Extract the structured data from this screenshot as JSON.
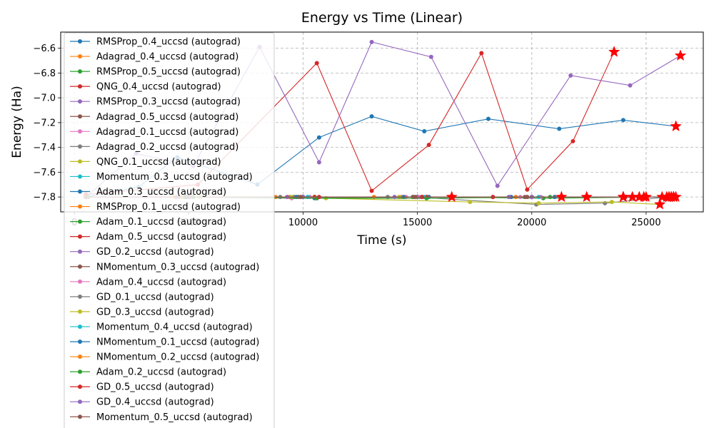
{
  "chart_data": {
    "type": "line",
    "title": "Energy vs Time (Linear)",
    "xlabel": "Time (s)",
    "ylabel": "Energy (Ha)",
    "xlim": [
      -600,
      27500
    ],
    "ylim": [
      -7.92,
      -6.47
    ],
    "x_ticks": [
      0,
      5000,
      10000,
      15000,
      20000,
      25000
    ],
    "x_tick_labels": [
      "0",
      "5000",
      "10000",
      "15000",
      "20000",
      "25000"
    ],
    "y_ticks": [
      -7.8,
      -7.6,
      -7.4,
      -7.2,
      -7.0,
      -6.8,
      -6.6
    ],
    "y_tick_labels": [
      "−7.8",
      "−7.6",
      "−7.4",
      "−7.2",
      "−7.0",
      "−6.8",
      "−6.6"
    ],
    "grid": true,
    "legend_position": "upper-left",
    "end_marker": "red-star",
    "series": [
      {
        "name": "RMSProp_0.4_uccsd (autograd)",
        "color": "#1f77b4",
        "x": [
          500,
          2800,
          4500,
          8000,
          10700,
          13000,
          15300,
          18100,
          21200,
          24000,
          26300
        ],
        "y": [
          -7.8,
          -7.72,
          -7.48,
          -7.7,
          -7.32,
          -7.15,
          -7.27,
          -7.17,
          -7.25,
          -7.18,
          -7.23
        ]
      },
      {
        "name": "Adagrad_0.4_uccsd (autograd)",
        "color": "#ff7f0e",
        "x": [
          500,
          5000,
          10000,
          15000,
          20000,
          26200
        ],
        "y": [
          -7.8,
          -7.8,
          -7.8,
          -7.8,
          -7.8,
          -7.8
        ]
      },
      {
        "name": "RMSProp_0.5_uccsd (autograd)",
        "color": "#2ca02c",
        "x": [
          600,
          5000,
          10500,
          15400,
          20500,
          26100
        ],
        "y": [
          -7.8,
          -7.8,
          -7.8,
          -7.8,
          -7.81,
          -7.8
        ]
      },
      {
        "name": "QNG_0.4_uccsd (autograd)",
        "color": "#d62728",
        "x": [
          500,
          5400,
          10600,
          13000,
          15500,
          17800,
          19800,
          21800,
          23600
        ],
        "y": [
          -7.78,
          -7.7,
          -6.72,
          -7.75,
          -7.38,
          -6.64,
          -7.74,
          -7.35,
          -6.63
        ]
      },
      {
        "name": "RMSProp_0.3_uccsd (autograd)",
        "color": "#9467bd",
        "x": [
          500,
          2700,
          5200,
          8100,
          10700,
          13000,
          15600,
          18500,
          21700,
          24300,
          26500
        ],
        "y": [
          -7.8,
          -7.45,
          -7.55,
          -6.59,
          -7.52,
          -6.55,
          -6.67,
          -7.71,
          -6.82,
          -6.9,
          -6.66
        ]
      },
      {
        "name": "Adagrad_0.5_uccsd (autograd)",
        "color": "#8c564b",
        "x": [
          500,
          5000,
          10000,
          15000,
          20000,
          26300
        ],
        "y": [
          -7.8,
          -7.8,
          -7.8,
          -7.8,
          -7.8,
          -7.8
        ]
      },
      {
        "name": "Adagrad_0.1_uccsd (autograd)",
        "color": "#e377c2",
        "x": [
          500,
          4500,
          9500,
          14500,
          19500,
          25000
        ],
        "y": [
          -7.8,
          -7.8,
          -7.81,
          -7.8,
          -7.8,
          -7.8
        ]
      },
      {
        "name": "Adagrad_0.2_uccsd (autograd)",
        "color": "#7f7f7f",
        "x": [
          500,
          4800,
          9600,
          14800,
          20200,
          23200,
          26000
        ],
        "y": [
          -7.8,
          -7.8,
          -7.8,
          -7.8,
          -7.86,
          -7.85,
          -7.8
        ]
      },
      {
        "name": "QNG_0.1_uccsd (autograd)",
        "color": "#bcbd22",
        "x": [
          500,
          5500,
          11000,
          17300,
          20300,
          23500,
          25600
        ],
        "y": [
          -7.8,
          -7.8,
          -7.81,
          -7.84,
          -7.85,
          -7.84,
          -7.86
        ]
      },
      {
        "name": "Momentum_0.3_uccsd (autograd)",
        "color": "#17becf",
        "x": [
          500,
          5000,
          10000,
          15000,
          20000,
          26100
        ],
        "y": [
          -7.8,
          -7.8,
          -7.8,
          -7.8,
          -7.8,
          -7.8
        ]
      },
      {
        "name": "Adam_0.3_uccsd (autograd)",
        "color": "#1f77b4",
        "x": [
          500,
          5000,
          10500,
          15500,
          21000,
          26200
        ],
        "y": [
          -7.8,
          -7.8,
          -7.81,
          -7.8,
          -7.8,
          -7.8
        ]
      },
      {
        "name": "RMSProp_0.1_uccsd (autograd)",
        "color": "#ff7f0e",
        "x": [
          500,
          4600,
          9400,
          14300,
          19300,
          24000
        ],
        "y": [
          -7.8,
          -7.8,
          -7.8,
          -7.8,
          -7.8,
          -7.8
        ]
      },
      {
        "name": "Adam_0.1_uccsd (autograd)",
        "color": "#2ca02c",
        "x": [
          500,
          5200,
          10600,
          15200,
          20800,
          26000
        ],
        "y": [
          -7.8,
          -7.8,
          -7.81,
          -7.8,
          -7.8,
          -7.8
        ]
      },
      {
        "name": "Adam_0.5_uccsd (autograd)",
        "color": "#d62728",
        "x": [
          500,
          5000,
          10500,
          15400,
          20000,
          24700
        ],
        "y": [
          -7.8,
          -7.8,
          -7.8,
          -7.8,
          -7.8,
          -7.8
        ]
      },
      {
        "name": "GD_0.2_uccsd (autograd)",
        "color": "#9467bd",
        "x": [
          500,
          5000,
          10000,
          15000,
          20000,
          24400
        ],
        "y": [
          -7.8,
          -7.8,
          -7.8,
          -7.8,
          -7.8,
          -7.8
        ]
      },
      {
        "name": "NMomentum_0.3_uccsd (autograd)",
        "color": "#8c564b",
        "x": [
          500,
          4800,
          9800,
          14800,
          19800,
          24900
        ],
        "y": [
          -7.8,
          -7.8,
          -7.8,
          -7.8,
          -7.8,
          -7.8
        ]
      },
      {
        "name": "Adam_0.4_uccsd (autograd)",
        "color": "#e377c2",
        "x": [
          500,
          5100,
          10300,
          15100,
          20400,
          25900
        ],
        "y": [
          -7.8,
          -7.8,
          -7.8,
          -7.8,
          -7.8,
          -7.8
        ]
      },
      {
        "name": "GD_0.1_uccsd (autograd)",
        "color": "#7f7f7f",
        "x": [
          500,
          4400,
          9000,
          13700,
          18300,
          22400
        ],
        "y": [
          -7.8,
          -7.8,
          -7.8,
          -7.8,
          -7.8,
          -7.8
        ]
      },
      {
        "name": "GD_0.3_uccsd (autograd)",
        "color": "#bcbd22",
        "x": [
          500,
          4700,
          9500,
          14200,
          19000,
          24000
        ],
        "y": [
          -7.8,
          -7.8,
          -7.8,
          -7.8,
          -7.8,
          -7.8
        ]
      },
      {
        "name": "Momentum_0.4_uccsd (autograd)",
        "color": "#17becf",
        "x": [
          500,
          5000,
          10200,
          15300,
          20300,
          26200
        ],
        "y": [
          -7.8,
          -7.8,
          -7.8,
          -7.8,
          -7.8,
          -7.8
        ]
      },
      {
        "name": "NMomentum_0.1_uccsd (autograd)",
        "color": "#1f77b4",
        "x": [
          500,
          4900,
          9700,
          14400,
          19100,
          26200
        ],
        "y": [
          -7.8,
          -7.8,
          -7.8,
          -7.8,
          -7.8,
          -7.8
        ]
      },
      {
        "name": "NMomentum_0.2_uccsd (autograd)",
        "color": "#ff7f0e",
        "x": [
          500,
          4400,
          8800,
          13100,
          16500
        ],
        "y": [
          -7.8,
          -7.8,
          -7.8,
          -7.8,
          -7.8
        ]
      },
      {
        "name": "Adam_0.2_uccsd (autograd)",
        "color": "#2ca02c",
        "x": [
          500,
          5200,
          10600,
          15400,
          21300
        ],
        "y": [
          -7.8,
          -7.8,
          -7.81,
          -7.81,
          -7.8
        ]
      },
      {
        "name": "GD_0.5_uccsd (autograd)",
        "color": "#d62728",
        "x": [
          500,
          5000,
          10700,
          15200,
          18300,
          24100,
          26200
        ],
        "y": [
          -7.8,
          -7.8,
          -7.8,
          -7.8,
          -7.8,
          -7.8,
          -7.8
        ]
      },
      {
        "name": "GD_0.4_uccsd (autograd)",
        "color": "#9467bd",
        "x": [
          500,
          4500,
          9300,
          14000,
          19000,
          26000
        ],
        "y": [
          -7.8,
          -7.8,
          -7.8,
          -7.8,
          -7.8,
          -7.8
        ]
      },
      {
        "name": "Momentum_0.5_uccsd (autograd)",
        "color": "#8c564b",
        "x": [
          500,
          5000,
          9900,
          14900,
          19700,
          25700
        ],
        "y": [
          -7.8,
          -7.8,
          -7.8,
          -7.8,
          -7.8,
          -7.8
        ]
      }
    ]
  }
}
